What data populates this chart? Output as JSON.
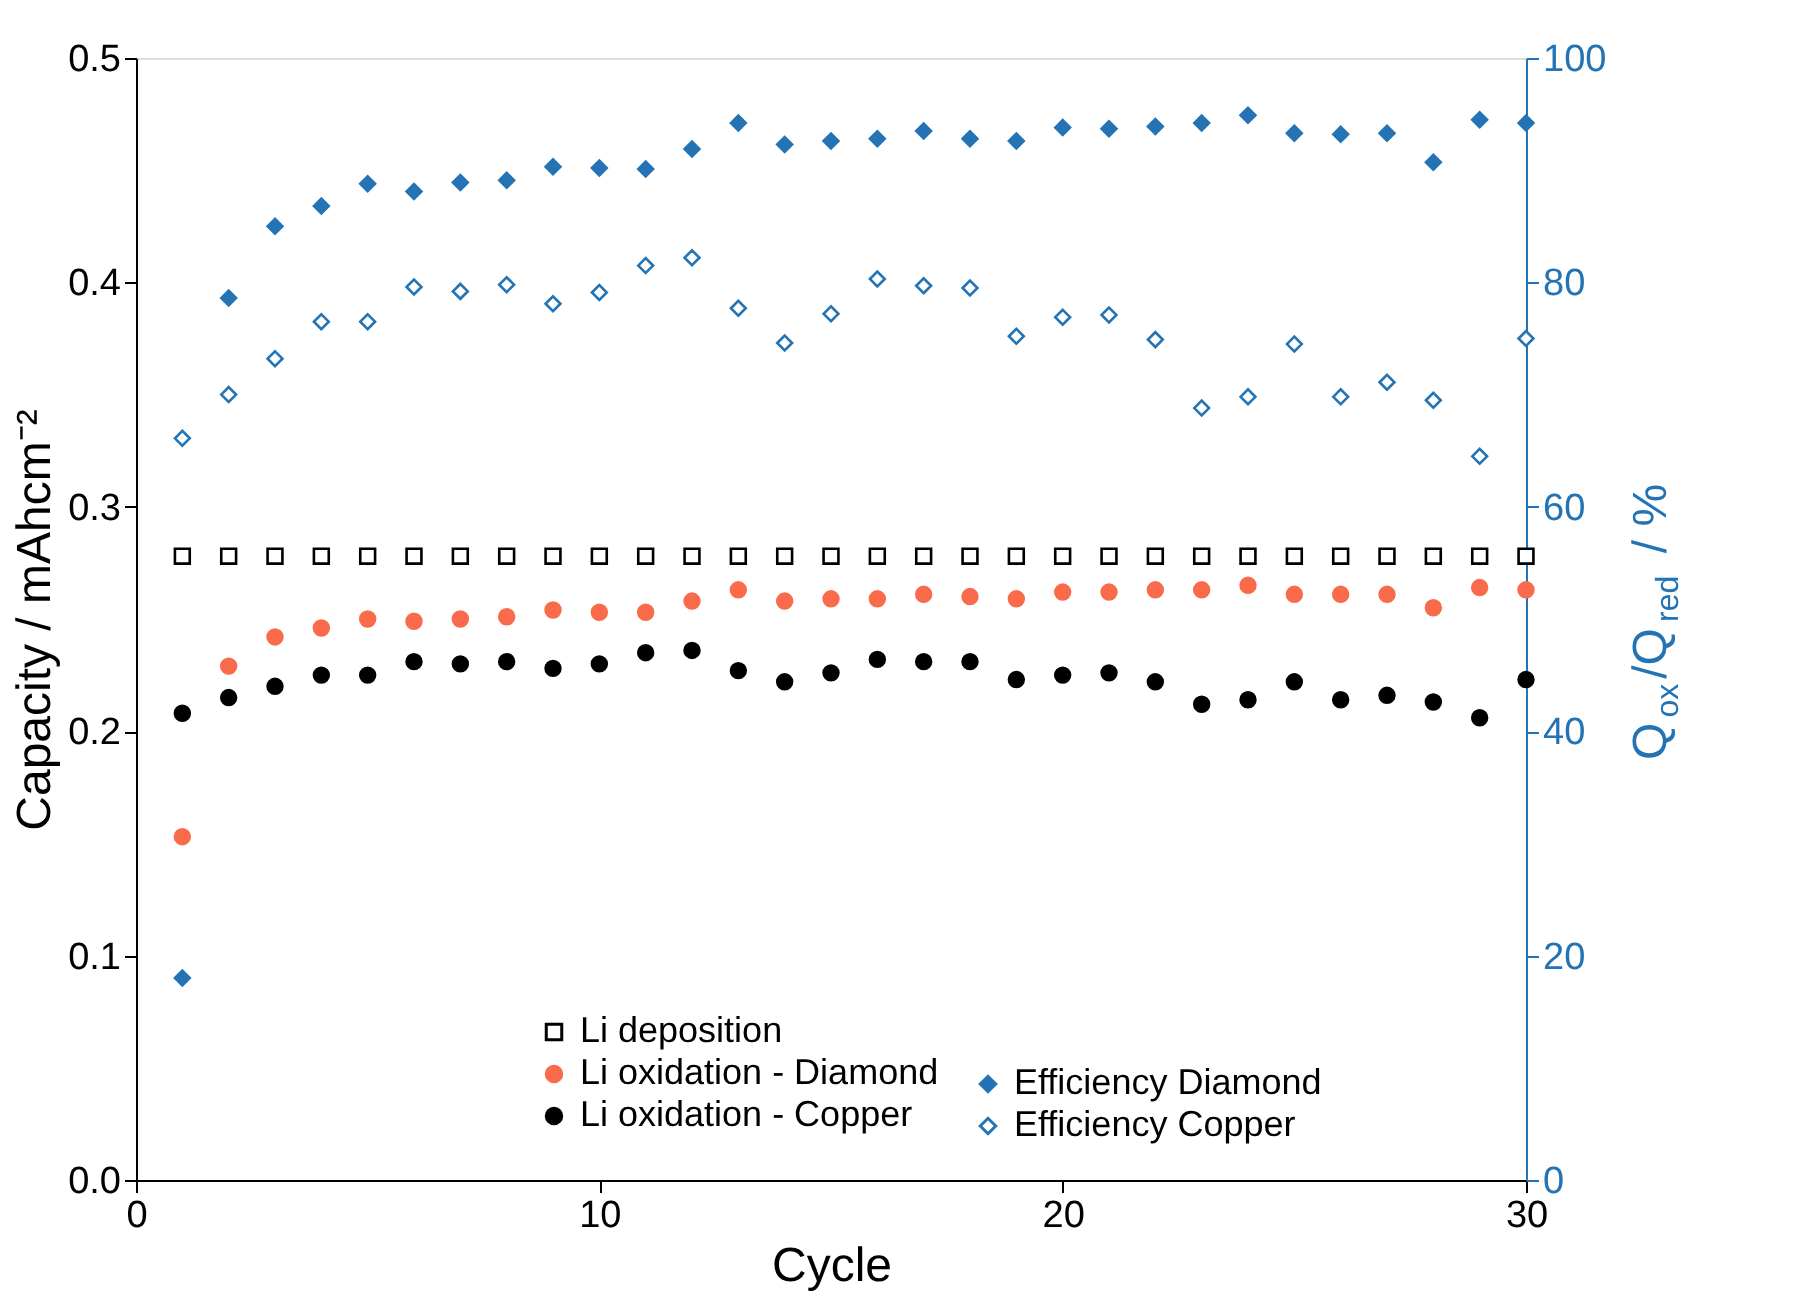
{
  "chart_data": {
    "type": "scatter",
    "xlabel": "Cycle",
    "ylabel": "Capacity / mAhcm⁻²",
    "y2label": "Q$_{ox}$/Q$_{red}$ / %",
    "x": [
      1,
      2,
      3,
      4,
      5,
      6,
      7,
      8,
      9,
      10,
      11,
      12,
      13,
      14,
      15,
      16,
      17,
      18,
      19,
      20,
      21,
      22,
      23,
      24,
      25,
      26,
      27,
      28,
      29,
      30
    ],
    "xlim": [
      0,
      30
    ],
    "xticks": [
      0,
      10,
      20,
      30
    ],
    "ylim": [
      0,
      0.5
    ],
    "yticks": [
      {
        "value": 0,
        "label": "0.0"
      },
      0.1,
      0.2,
      0.3,
      0.4,
      0.5
    ],
    "y2lim": [
      0,
      100
    ],
    "y2ticks": [
      0,
      20,
      40,
      60,
      80,
      100
    ],
    "grid": false,
    "legend": "bottom",
    "series": [
      {
        "name": "Li deposition",
        "color": "#000000",
        "marker": "square",
        "values": [
          0.278,
          0.278,
          0.278,
          0.278,
          0.278,
          0.278,
          0.278,
          0.278,
          0.278,
          0.278,
          0.278,
          0.278,
          0.278,
          0.278,
          0.278,
          0.278,
          0.278,
          0.278,
          0.278,
          0.278,
          0.278,
          0.278,
          0.278,
          0.278,
          0.278,
          0.278,
          0.278,
          0.278,
          0.278,
          0.278
        ]
      },
      {
        "name": "Li oxidation - Diamond",
        "color": "#f96b4b",
        "marker": "circle",
        "values": [
          0.153,
          0.229,
          0.242,
          0.246,
          0.25,
          0.249,
          0.25,
          0.251,
          0.254,
          0.253,
          0.253,
          0.258,
          0.263,
          0.258,
          0.259,
          0.259,
          0.261,
          0.26,
          0.259,
          0.262,
          0.262,
          0.263,
          0.263,
          0.265,
          0.261,
          0.261,
          0.261,
          0.255,
          0.264,
          0.263
        ]
      },
      {
        "name": "Li oxidation - Copper",
        "color": "#000000",
        "marker": "circle",
        "values": [
          0.208,
          0.215,
          0.22,
          0.225,
          0.225,
          0.231,
          0.23,
          0.231,
          0.228,
          0.23,
          0.235,
          0.236,
          0.227,
          0.222,
          0.226,
          0.232,
          0.231,
          0.231,
          0.223,
          0.225,
          0.226,
          0.222,
          0.212,
          0.214,
          0.222,
          0.214,
          0.216,
          0.213,
          0.206,
          0.223
        ]
      },
      {
        "name": "Efficiency Diamond",
        "color": "#2474b5",
        "marker": "diamond",
        "axis": "y2",
        "values": [
          18,
          78.6,
          85.0,
          86.8,
          88.8,
          88.1,
          88.9,
          89.1,
          90.3,
          90.2,
          90.1,
          91.9,
          94.2,
          92.3,
          92.6,
          92.8,
          93.5,
          92.8,
          92.6,
          93.8,
          93.7,
          93.9,
          94.2,
          94.9,
          93.3,
          93.2,
          93.3,
          90.7,
          94.5,
          94.2
        ]
      },
      {
        "name": "Efficiency Copper",
        "color": "#2474b5",
        "marker": "diamond",
        "axis": "y2",
        "values": [
          66.1,
          70.0,
          73.2,
          76.5,
          76.5,
          79.6,
          79.2,
          79.8,
          78.1,
          79.1,
          81.5,
          82.2,
          77.7,
          74.6,
          77.2,
          80.3,
          79.7,
          79.5,
          75.2,
          76.9,
          77.1,
          74.9,
          68.8,
          69.8,
          74.5,
          69.8,
          71.1,
          69.5,
          64.5,
          75.0
        ]
      }
    ]
  }
}
